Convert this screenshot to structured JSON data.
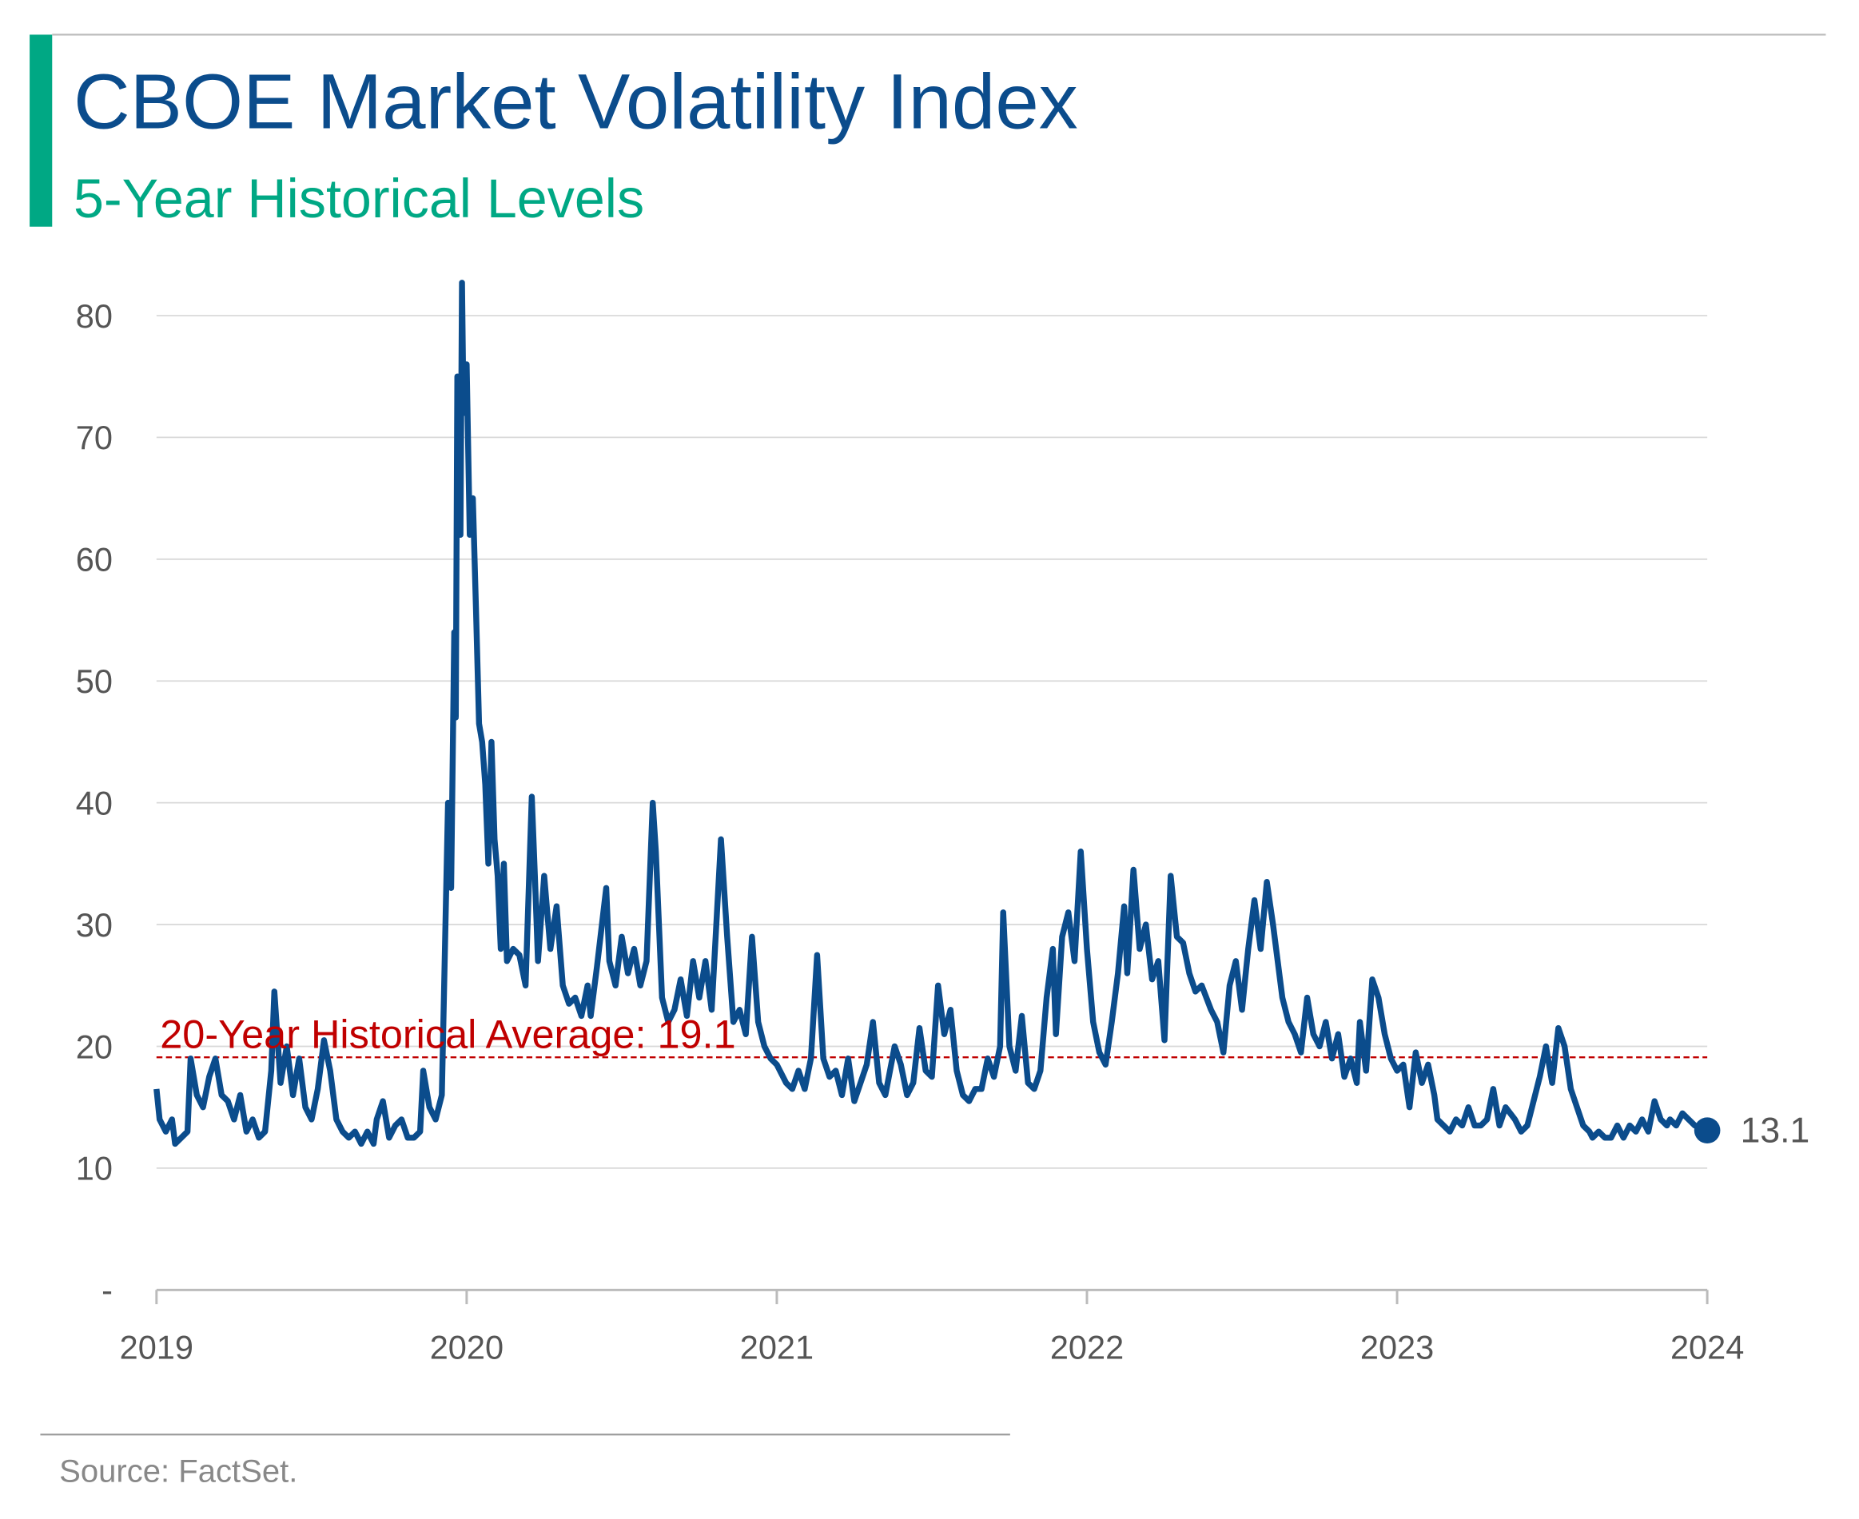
{
  "chart_data": {
    "type": "line",
    "title": "CBOE Market Volatility Index",
    "subtitle": "5-Year Historical Levels",
    "source": "Source: FactSet.",
    "xlim": [
      2019,
      2024
    ],
    "xticks": [
      2019,
      2020,
      2021,
      2022,
      2023,
      2024
    ],
    "ylim": [
      0,
      85
    ],
    "yticks": [
      {
        "value": 0,
        "label": "-"
      },
      10,
      20,
      30,
      40,
      50,
      60,
      70,
      80
    ],
    "grid": true,
    "average": {
      "label": "20-Year Historical Average: 19.1",
      "value": 19.1,
      "color": "#c00000"
    },
    "x": [
      2019.0,
      2019.01,
      2019.03,
      2019.05,
      2019.06,
      2019.08,
      2019.1,
      2019.11,
      2019.13,
      2019.15,
      2019.17,
      2019.19,
      2019.21,
      2019.23,
      2019.25,
      2019.27,
      2019.29,
      2019.31,
      2019.33,
      2019.35,
      2019.37,
      2019.38,
      2019.4,
      2019.42,
      2019.44,
      2019.46,
      2019.48,
      2019.5,
      2019.52,
      2019.54,
      2019.56,
      2019.58,
      2019.6,
      2019.62,
      2019.64,
      2019.66,
      2019.68,
      2019.7,
      2019.71,
      2019.73,
      2019.75,
      2019.77,
      2019.79,
      2019.81,
      2019.83,
      2019.85,
      2019.86,
      2019.88,
      2019.9,
      2019.92,
      2019.93,
      2019.94,
      2019.95,
      2019.96,
      2019.965,
      2019.97,
      2019.98,
      2019.985,
      2019.99,
      2020.0,
      2020.01,
      2020.02,
      2020.03,
      2020.04,
      2020.05,
      2020.06,
      2020.07,
      2020.08,
      2020.09,
      2020.1,
      2020.11,
      2020.12,
      2020.13,
      2020.15,
      2020.17,
      2020.19,
      2020.21,
      2020.22,
      2020.23,
      2020.25,
      2020.27,
      2020.29,
      2020.31,
      2020.33,
      2020.35,
      2020.37,
      2020.39,
      2020.4,
      2020.42,
      2020.45,
      2020.46,
      2020.48,
      2020.5,
      2020.52,
      2020.54,
      2020.56,
      2020.58,
      2020.6,
      2020.61,
      2020.63,
      2020.65,
      2020.67,
      2020.69,
      2020.71,
      2020.73,
      2020.75,
      2020.77,
      2020.79,
      2020.82,
      2020.84,
      2020.86,
      2020.88,
      2020.9,
      2020.92,
      2020.94,
      2020.96,
      2020.98,
      2021.0,
      2021.03,
      2021.05,
      2021.07,
      2021.09,
      2021.11,
      2021.13,
      2021.15,
      2021.17,
      2021.19,
      2021.21,
      2021.23,
      2021.25,
      2021.27,
      2021.29,
      2021.31,
      2021.33,
      2021.35,
      2021.38,
      2021.4,
      2021.42,
      2021.44,
      2021.46,
      2021.48,
      2021.5,
      2021.52,
      2021.54,
      2021.56,
      2021.58,
      2021.6,
      2021.62,
      2021.64,
      2021.66,
      2021.68,
      2021.7,
      2021.72,
      2021.73,
      2021.75,
      2021.77,
      2021.79,
      2021.81,
      2021.83,
      2021.85,
      2021.87,
      2021.89,
      2021.9,
      2021.92,
      2021.94,
      2021.96,
      2021.98,
      2022.0,
      2022.02,
      2022.04,
      2022.06,
      2022.08,
      2022.1,
      2022.12,
      2022.13,
      2022.15,
      2022.17,
      2022.19,
      2022.21,
      2022.23,
      2022.25,
      2022.27,
      2022.29,
      2022.31,
      2022.33,
      2022.35,
      2022.37,
      2022.4,
      2022.42,
      2022.44,
      2022.46,
      2022.48,
      2022.5,
      2022.52,
      2022.54,
      2022.56,
      2022.58,
      2022.6,
      2022.62,
      2022.63,
      2022.65,
      2022.67,
      2022.69,
      2022.71,
      2022.73,
      2022.75,
      2022.77,
      2022.79,
      2022.81,
      2022.83,
      2022.85,
      2022.87,
      2022.88,
      2022.9,
      2022.92,
      2022.94,
      2022.96,
      2022.98,
      2023.0,
      2023.02,
      2023.04,
      2023.06,
      2023.08,
      2023.1,
      2023.12,
      2023.13,
      2023.15,
      2023.17,
      2023.19,
      2023.21,
      2023.23,
      2023.25,
      2023.27,
      2023.29,
      2023.31,
      2023.33,
      2023.35,
      2023.38,
      2023.4,
      2023.42,
      2023.44,
      2023.46,
      2023.48,
      2023.5,
      2023.52,
      2023.54,
      2023.56,
      2023.58,
      2023.6,
      2023.62,
      2023.63,
      2023.65,
      2023.67,
      2023.69,
      2023.71,
      2023.73,
      2023.75,
      2023.77,
      2023.79,
      2023.81,
      2023.83,
      2023.85,
      2023.87,
      2023.88,
      2023.9,
      2023.92,
      2023.94,
      2023.96,
      2024.0
    ],
    "series": [
      {
        "color": "#0b4c8c",
        "values": [
          16.5,
          14,
          13,
          14,
          12,
          12.5,
          13,
          19,
          16,
          15,
          17.5,
          19,
          16,
          15.5,
          14,
          16,
          13,
          14,
          12.5,
          13,
          18,
          24.5,
          17,
          20,
          16,
          19,
          15,
          14,
          16.5,
          20.5,
          18,
          14,
          13,
          12.5,
          13,
          12,
          13,
          12,
          14,
          15.5,
          12.5,
          13.5,
          14,
          12.5,
          12.5,
          13,
          18,
          15,
          14,
          16,
          28,
          40,
          33,
          54,
          47,
          75,
          62,
          82.7,
          72,
          76,
          62,
          65,
          56,
          46.5,
          45,
          41.5,
          35,
          45,
          37,
          34,
          28,
          35,
          27,
          28,
          27.5,
          25,
          40.5,
          34,
          27,
          34,
          28,
          31.5,
          25,
          23.5,
          24,
          22.5,
          25,
          22.5,
          26.5,
          33,
          27,
          25,
          29,
          26,
          28,
          25,
          27,
          40,
          36,
          24,
          22,
          23,
          25.5,
          22.5,
          27,
          24,
          27,
          23,
          37,
          29,
          22,
          23,
          21,
          29,
          22,
          20,
          19,
          18.5,
          17,
          16.5,
          18,
          16.5,
          19,
          27.5,
          19,
          17.5,
          18,
          16,
          19,
          15.5,
          17,
          18.5,
          22,
          17,
          16,
          20,
          18.5,
          16,
          17,
          21.5,
          18,
          17.5,
          25,
          21,
          23,
          18,
          16,
          15.5,
          16.5,
          16.5,
          19,
          17.5,
          20,
          31,
          20,
          18,
          22.5,
          17,
          16.5,
          18,
          24,
          28,
          21,
          29,
          31,
          27,
          36,
          28,
          22,
          19.5,
          18.5,
          22,
          26,
          31.5,
          26,
          34.5,
          28,
          30,
          25.5,
          27,
          20.5,
          34,
          29,
          28.5,
          26,
          24.5,
          25,
          23,
          22,
          19.5,
          25,
          27,
          23,
          28,
          32,
          28,
          33.5,
          30,
          26,
          24,
          22,
          21,
          19.5,
          24,
          21,
          20,
          22,
          19,
          21,
          17.5,
          19,
          17,
          22,
          18,
          25.5,
          24,
          21,
          19,
          18,
          18.5,
          15,
          19.5,
          17,
          18.5,
          16,
          14,
          13.5,
          13,
          14,
          13.5,
          15,
          13.5,
          13.5,
          14,
          16.5,
          13.5,
          15,
          14,
          13,
          13.5,
          15.5,
          17.5,
          20,
          17,
          21.5,
          20,
          16.5,
          15,
          13.5,
          13,
          12.5,
          13,
          12.5,
          12.5,
          13.5,
          12.5,
          13.5,
          13,
          14,
          13,
          15.5,
          14,
          13.5,
          14,
          13.5,
          14.5,
          14,
          13.5,
          13.1
        ]
      }
    ]
  }
}
